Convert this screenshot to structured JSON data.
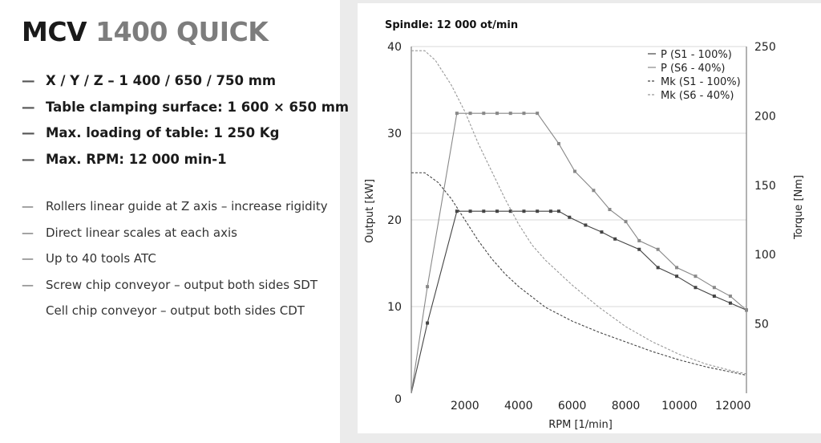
{
  "title": {
    "model": "MCV",
    "variant": "1400 QUICK"
  },
  "specs_bold": [
    "X / Y / Z – 1 400 / 650 / 750 mm",
    "Table clamping surface: 1 600 × 650 mm",
    "Max. loading of table: 1 250 Kg",
    "Max. RPM: 12 000 min-1"
  ],
  "specs_regular": [
    "Rollers linear guide at Z axis – increase  rigidity",
    "Direct linear scales at each axis",
    "Up to 40 tools ATC",
    "Screw chip conveyor – output both sides SDT",
    "Cell chip conveyor – output both sides CDT"
  ],
  "dash": "—",
  "chart_data": {
    "type": "line",
    "title": "Spindle: 12 000 ot/min",
    "xlabel": "RPM [1/min]",
    "ylabel": "Output [kW]",
    "y2label": "Torque [Nm]",
    "xlim": [
      0,
      12500
    ],
    "ylim": [
      0,
      40
    ],
    "y2lim": [
      0,
      250
    ],
    "xticks": [
      2000,
      4000,
      6000,
      8000,
      10000,
      12000
    ],
    "yticks": [
      0,
      10,
      20,
      30,
      40
    ],
    "y2ticks": [
      50,
      100,
      150,
      200,
      250
    ],
    "grid": "horizontal",
    "legend_position": "top-right",
    "colors": {
      "s1_power": "#444444",
      "s6_power": "#888888",
      "s1_torque": "#444444",
      "s6_torque": "#999999"
    },
    "series": [
      {
        "name": "P (S1 - 100%)",
        "axis": "left",
        "style": "solid-marker",
        "x": [
          0,
          600,
          1700,
          2200,
          2700,
          3200,
          3700,
          4200,
          4700,
          5200,
          5500,
          5900,
          6500,
          7100,
          7600,
          8500,
          9200,
          9900,
          10600,
          11300,
          11900,
          12500
        ],
        "y": [
          0,
          8.1,
          21.0,
          21.0,
          21.0,
          21.0,
          21.0,
          21.0,
          21.0,
          21.0,
          21.0,
          20.3,
          19.4,
          18.6,
          17.8,
          16.6,
          14.5,
          13.5,
          12.2,
          11.2,
          10.4,
          9.6
        ]
      },
      {
        "name": "P (S6 - 40%)",
        "axis": "left",
        "style": "solid-marker",
        "x": [
          0,
          600,
          1700,
          2200,
          2700,
          3200,
          3700,
          4200,
          4700,
          5500,
          6100,
          6800,
          7400,
          8000,
          8500,
          9200,
          9900,
          10600,
          11300,
          11900,
          12500
        ],
        "y": [
          0,
          12.3,
          32.3,
          32.3,
          32.3,
          32.3,
          32.3,
          32.3,
          32.3,
          28.8,
          25.6,
          23.4,
          21.2,
          19.8,
          17.6,
          16.6,
          14.5,
          13.5,
          12.2,
          11.2,
          9.6
        ]
      },
      {
        "name": "Mk (S1 - 100%)",
        "axis": "right",
        "style": "dashed",
        "x": [
          0,
          500,
          1000,
          1500,
          2000,
          2500,
          3000,
          3500,
          4000,
          5000,
          6000,
          7000,
          8000,
          9000,
          10000,
          11000,
          12000,
          12500
        ],
        "y": [
          159,
          159,
          152,
          140,
          125,
          110,
          97,
          86,
          77,
          62,
          52,
          44,
          37,
          30,
          24,
          19,
          15,
          13
        ]
      },
      {
        "name": "Mk (S6 - 40%)",
        "axis": "right",
        "style": "dashed",
        "x": [
          0,
          500,
          900,
          1500,
          2000,
          2500,
          3000,
          3500,
          4000,
          4500,
          5000,
          6000,
          7000,
          8000,
          9000,
          10000,
          11000,
          12000,
          12500
        ],
        "y": [
          247,
          247,
          240,
          222,
          203,
          180,
          160,
          140,
          122,
          107,
          96,
          78,
          62,
          48,
          37,
          28,
          21,
          16,
          14
        ]
      }
    ]
  }
}
